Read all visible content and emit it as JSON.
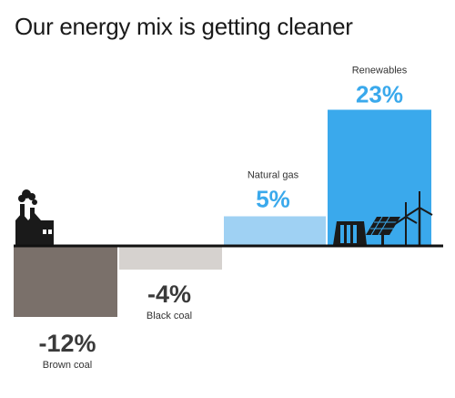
{
  "title": "Our energy mix is getting cleaner",
  "colors": {
    "brown_coal": "#7a706a",
    "black_coal": "#d6d2cf",
    "natural_gas": "#9fd1f3",
    "renewables": "#3aa9ec",
    "value_dark": "#3a3a3a",
    "value_blue": "#3aa9ec",
    "baseline": "#111111",
    "icon": "#1a1a1a"
  },
  "chart_data": {
    "type": "bar",
    "title": "Our energy mix is getting cleaner",
    "categories": [
      "Brown coal",
      "Black coal",
      "Natural gas",
      "Renewables"
    ],
    "values": [
      -12,
      -4,
      5,
      23
    ],
    "value_labels": [
      "-12%",
      "-4%",
      "5%",
      "23%"
    ],
    "unit": "%",
    "grid": false,
    "legend": "none",
    "ylim": [
      -12,
      23
    ],
    "icons": [
      "factory-icon",
      "hydro-dam-icon",
      "solar-panel-icon",
      "wind-turbine-icon"
    ]
  }
}
